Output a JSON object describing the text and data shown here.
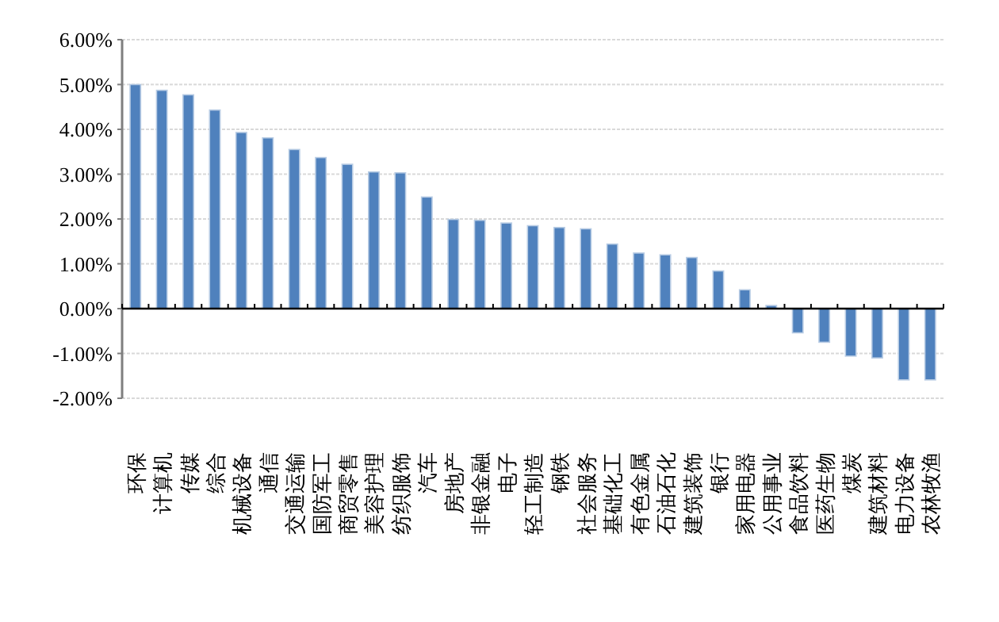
{
  "chart_data": {
    "type": "bar",
    "categories": [
      "环保",
      "计算机",
      "传媒",
      "综合",
      "机械设备",
      "通信",
      "交通运输",
      "国防军工",
      "商贸零售",
      "美容护理",
      "纺织服饰",
      "汽车",
      "房地产",
      "非银金融",
      "电子",
      "轻工制造",
      "钢铁",
      "社会服务",
      "基础化工",
      "有色金属",
      "石油石化",
      "建筑装饰",
      "银行",
      "家用电器",
      "公用事业",
      "食品饮料",
      "医药生物",
      "煤炭",
      "建筑材料",
      "电力设备",
      "农林牧渔"
    ],
    "values": [
      5.0,
      4.87,
      4.77,
      4.43,
      3.93,
      3.81,
      3.55,
      3.37,
      3.22,
      3.05,
      3.03,
      2.49,
      1.99,
      1.97,
      1.91,
      1.85,
      1.81,
      1.78,
      1.44,
      1.24,
      1.2,
      1.14,
      0.84,
      0.42,
      0.07,
      -0.54,
      -0.75,
      -1.06,
      -1.1,
      -1.59,
      -1.59
    ],
    "color": "#4f81bd",
    "ylim": [
      -2,
      6
    ],
    "yticks": [
      {
        "value": -2,
        "label": "-2.00%"
      },
      {
        "value": -1,
        "label": "-1.00%"
      },
      {
        "value": 0,
        "label": "0.00%"
      },
      {
        "value": 1,
        "label": "1.00%"
      },
      {
        "value": 2,
        "label": "2.00%"
      },
      {
        "value": 3,
        "label": "3.00%"
      },
      {
        "value": 4,
        "label": "4.00%"
      },
      {
        "value": 5,
        "label": "5.00%"
      },
      {
        "value": 6,
        "label": "6.00%"
      }
    ],
    "grid": "y"
  }
}
